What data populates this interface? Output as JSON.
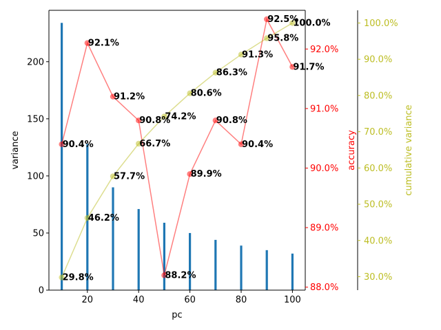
{
  "chart_data": {
    "type": "bar",
    "x": [
      10,
      20,
      30,
      40,
      50,
      60,
      70,
      80,
      90,
      100
    ],
    "xlabel": "pc",
    "xlim": [
      5,
      105
    ],
    "xticks": [
      20,
      40,
      60,
      80,
      100
    ],
    "grid": false,
    "series": [
      {
        "type": "bar",
        "axis": "left",
        "values": [
          234,
          128,
          90,
          71,
          59,
          50,
          44,
          39,
          35,
          32
        ],
        "color": "#1f77b4"
      },
      {
        "type": "line",
        "axis": "right",
        "values": [
          90.4,
          92.1,
          91.2,
          90.8,
          88.2,
          89.9,
          90.8,
          90.4,
          92.5,
          91.7
        ],
        "labels": [
          "90.4%",
          "92.1%",
          "91.2%",
          "90.8%",
          "88.2%",
          "89.9%",
          "90.8%",
          "90.4%",
          "92.5%",
          "91.7%"
        ],
        "color": "#ff0000"
      },
      {
        "type": "line",
        "axis": "right2",
        "values": [
          29.8,
          46.2,
          57.7,
          66.7,
          74.2,
          80.6,
          86.3,
          91.3,
          95.8,
          100.0
        ],
        "labels": [
          "29.8%",
          "46.2%",
          "57.7%",
          "66.7%",
          "74.2%",
          "80.6%",
          "86.3%",
          "91.3%",
          "95.8%",
          "100.0%"
        ],
        "color": "#bcbd22"
      }
    ],
    "axes": {
      "left": {
        "label": "variance",
        "ylim": [
          0,
          245
        ],
        "ticks": [
          0,
          50,
          100,
          150,
          200
        ],
        "tick_labels": [
          "0",
          "50",
          "100",
          "150",
          "200"
        ],
        "color": "#000000"
      },
      "right": {
        "label": "accuracy",
        "ylim": [
          87.95,
          92.65
        ],
        "ticks": [
          88.0,
          89.0,
          90.0,
          91.0,
          92.0
        ],
        "tick_labels": [
          "88.0%",
          "89.0%",
          "90.0%",
          "91.0%",
          "92.0%"
        ],
        "color": "#ff0000"
      },
      "right2": {
        "label": "cumulative variance",
        "ylim": [
          26.3,
          103.5
        ],
        "ticks": [
          30,
          40,
          50,
          60,
          70,
          80,
          90,
          100
        ],
        "tick_labels": [
          "30.0%",
          "40.0%",
          "50.0%",
          "60.0%",
          "70.0%",
          "80.0%",
          "90.0%",
          "100.0%"
        ],
        "color": "#bcbd22"
      }
    }
  }
}
